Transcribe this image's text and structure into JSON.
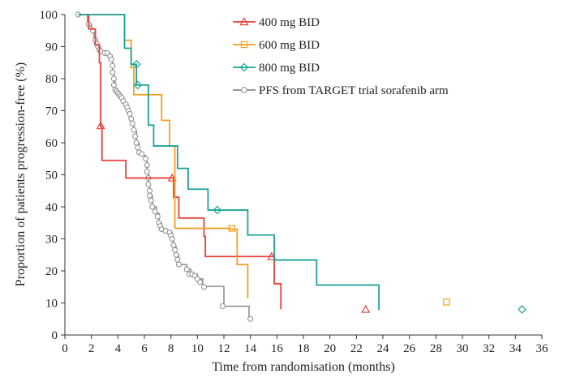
{
  "chart_data": {
    "type": "line",
    "step": true,
    "xlabel": "Time from randomisation (months)",
    "ylabel": "Proportion of patients progression-free (%)",
    "xlim": [
      0,
      36
    ],
    "ylim": [
      0,
      100
    ],
    "xticks": [
      0,
      2,
      4,
      6,
      8,
      10,
      12,
      14,
      16,
      18,
      20,
      22,
      24,
      26,
      28,
      30,
      32,
      34,
      36
    ],
    "yticks": [
      0,
      10,
      20,
      30,
      40,
      50,
      60,
      70,
      80,
      90,
      100
    ],
    "grid": false,
    "legend_position": "top-right",
    "series": [
      {
        "name": "400 mg BID",
        "color": "#e8403a",
        "marker": "triangle",
        "steps": [
          [
            1,
            100
          ],
          [
            1.8,
            95.5
          ],
          [
            2.3,
            90.5
          ],
          [
            2.6,
            85
          ],
          [
            2.7,
            65
          ],
          [
            2.8,
            54.5
          ],
          [
            4.6,
            49
          ],
          [
            8.2,
            43
          ],
          [
            8.6,
            36.5
          ],
          [
            10.5,
            30.8
          ],
          [
            10.6,
            24.5
          ],
          [
            15.8,
            16
          ],
          [
            16.3,
            8
          ]
        ],
        "end_x": 16.3,
        "markers": [
          [
            2.7,
            65.3
          ],
          [
            8.1,
            49
          ],
          [
            15.6,
            24.5
          ],
          [
            22.7,
            8
          ]
        ]
      },
      {
        "name": "600 mg BID",
        "color": "#f5a01e",
        "marker": "square",
        "steps": [
          [
            1,
            100
          ],
          [
            4.5,
            92
          ],
          [
            5,
            83.5
          ],
          [
            5.2,
            75
          ],
          [
            7.3,
            67
          ],
          [
            7.9,
            59
          ],
          [
            8.3,
            33.3
          ],
          [
            12.5,
            33
          ],
          [
            13,
            22
          ],
          [
            13.8,
            11.5
          ]
        ],
        "end_x": 13.8,
        "markers": [
          [
            12.6,
            33.3
          ],
          [
            28.8,
            10.3
          ]
        ]
      },
      {
        "name": "800 mg BID",
        "color": "#1aa39a",
        "marker": "diamond",
        "steps": [
          [
            1,
            100
          ],
          [
            4.5,
            89.5
          ],
          [
            5,
            84.5
          ],
          [
            5.4,
            78
          ],
          [
            6.3,
            65.5
          ],
          [
            6.7,
            59
          ],
          [
            8.5,
            52
          ],
          [
            9.3,
            45.5
          ],
          [
            10.8,
            39
          ],
          [
            13.8,
            31.2
          ],
          [
            15.8,
            23.4
          ],
          [
            19,
            15.6
          ],
          [
            23.7,
            7.8
          ]
        ],
        "end_x": 23.7,
        "markers": [
          [
            5.4,
            84.5
          ],
          [
            5.5,
            78
          ],
          [
            11.5,
            39
          ],
          [
            34.5,
            8
          ]
        ]
      },
      {
        "name": "PFS from TARGET trial sorafenib arm",
        "color": "#8a8a8a",
        "marker": "circle",
        "steps": [
          [
            1,
            100
          ],
          [
            1.7,
            97
          ],
          [
            2,
            95
          ],
          [
            2.2,
            92
          ],
          [
            2.4,
            90
          ],
          [
            2.6,
            88
          ],
          [
            3.4,
            86
          ],
          [
            3.6,
            82
          ],
          [
            3.7,
            79
          ],
          [
            3.8,
            76
          ],
          [
            4,
            75
          ],
          [
            4.2,
            74
          ],
          [
            4.4,
            72.5
          ],
          [
            4.6,
            71
          ],
          [
            4.8,
            69
          ],
          [
            5,
            66
          ],
          [
            5.2,
            63.5
          ],
          [
            5.4,
            60
          ],
          [
            5.6,
            57
          ],
          [
            5.8,
            56
          ],
          [
            6.1,
            54.5
          ],
          [
            6.2,
            51
          ],
          [
            6.3,
            47
          ],
          [
            6.4,
            43.5
          ],
          [
            6.6,
            40
          ],
          [
            6.9,
            38
          ],
          [
            7.1,
            35
          ],
          [
            7.3,
            33
          ],
          [
            7.7,
            32
          ],
          [
            8.1,
            30
          ],
          [
            8.2,
            27.5
          ],
          [
            8.4,
            25
          ],
          [
            8.6,
            22
          ],
          [
            9.2,
            20.5
          ],
          [
            9.5,
            19
          ],
          [
            10,
            17.5
          ],
          [
            10.4,
            15.2
          ],
          [
            12,
            9
          ],
          [
            13.9,
            5
          ]
        ],
        "end_x": 13.9,
        "markers": [
          [
            1,
            100
          ],
          [
            1.8,
            97
          ],
          [
            2.1,
            95
          ],
          [
            2.3,
            92
          ],
          [
            2.4,
            91
          ],
          [
            2.5,
            90
          ],
          [
            2.6,
            89
          ],
          [
            2.7,
            88.5
          ],
          [
            3,
            88
          ],
          [
            3.2,
            88
          ],
          [
            3.4,
            87
          ],
          [
            3.5,
            86
          ],
          [
            3.6,
            84
          ],
          [
            3.6,
            82
          ],
          [
            3.7,
            80
          ],
          [
            3.7,
            78
          ],
          [
            3.8,
            76.5
          ],
          [
            3.9,
            76
          ],
          [
            4,
            75.5
          ],
          [
            4.1,
            75
          ],
          [
            4.2,
            74.5
          ],
          [
            4.3,
            74
          ],
          [
            4.4,
            73
          ],
          [
            4.6,
            72
          ],
          [
            4.7,
            71
          ],
          [
            4.8,
            70
          ],
          [
            4.9,
            69
          ],
          [
            5,
            67.5
          ],
          [
            5.1,
            66
          ],
          [
            5.2,
            64
          ],
          [
            5.3,
            62
          ],
          [
            5.4,
            60
          ],
          [
            5.5,
            58.5
          ],
          [
            5.6,
            57
          ],
          [
            5.8,
            56.5
          ],
          [
            6.1,
            55
          ],
          [
            6.2,
            53
          ],
          [
            6.2,
            51
          ],
          [
            6.3,
            49
          ],
          [
            6.3,
            47
          ],
          [
            6.4,
            45
          ],
          [
            6.4,
            43.5
          ],
          [
            6.5,
            42
          ],
          [
            6.6,
            40
          ],
          [
            6.8,
            38.5
          ],
          [
            7,
            37
          ],
          [
            7.1,
            35
          ],
          [
            7.2,
            34
          ],
          [
            7.3,
            33
          ],
          [
            7.6,
            32.5
          ],
          [
            7.9,
            32
          ],
          [
            8,
            31
          ],
          [
            8.1,
            30
          ],
          [
            8.2,
            28
          ],
          [
            8.3,
            26.5
          ],
          [
            8.4,
            25
          ],
          [
            8.5,
            23.5
          ],
          [
            8.6,
            22
          ],
          [
            9.2,
            20.5
          ],
          [
            9.4,
            19
          ],
          [
            9.6,
            19
          ],
          [
            9.8,
            18.5
          ],
          [
            10,
            17.5
          ],
          [
            10.2,
            16.5
          ],
          [
            10.5,
            15
          ],
          [
            11.9,
            9
          ],
          [
            14,
            5
          ]
        ]
      }
    ]
  }
}
